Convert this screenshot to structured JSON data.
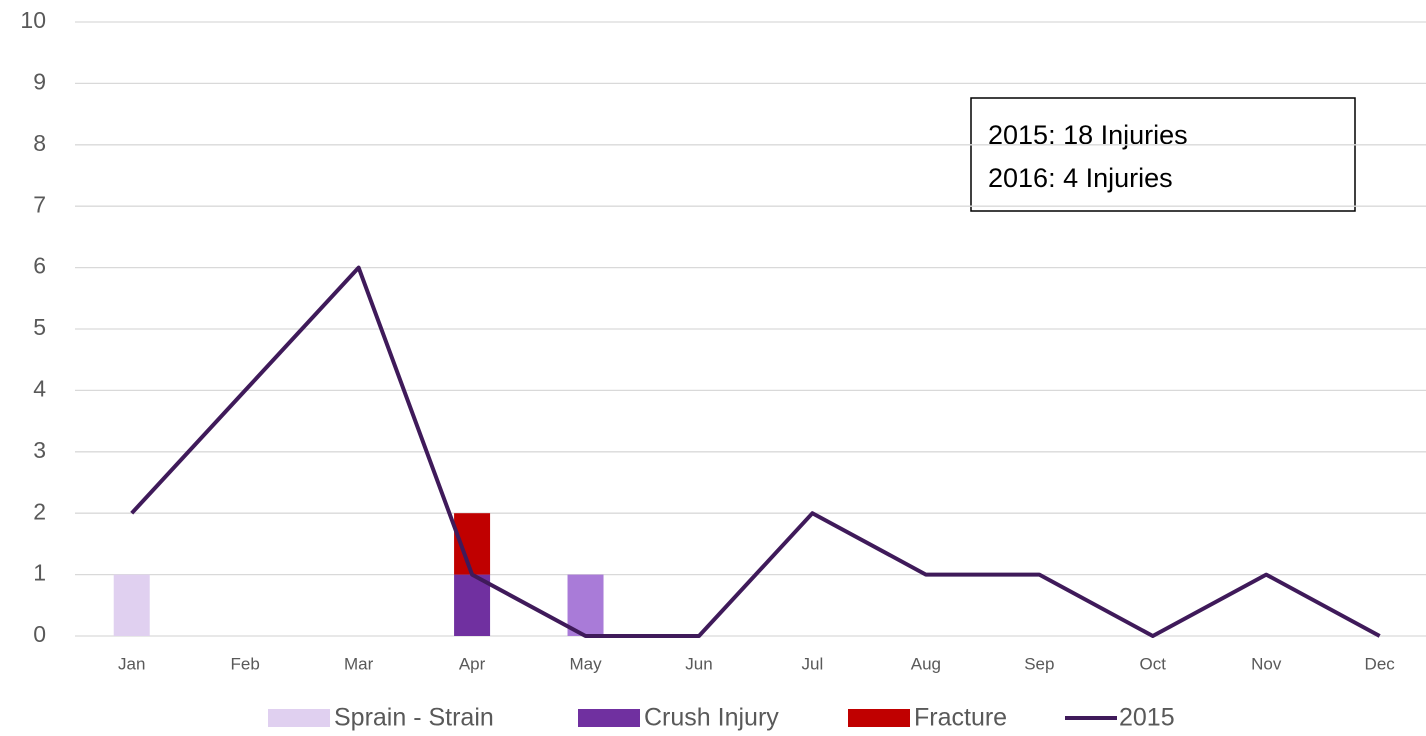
{
  "chart_data": {
    "type": "bar",
    "categories": [
      "Jan",
      "Feb",
      "Mar",
      "Apr",
      "May",
      "Jun",
      "Jul",
      "Aug",
      "Sep",
      "Oct",
      "Nov",
      "Dec"
    ],
    "series": [
      {
        "name": "Sprain - Strain",
        "color": "#e0d0f0",
        "values": [
          1,
          0,
          0,
          0,
          0,
          0,
          0,
          0,
          0,
          0,
          0,
          0
        ]
      },
      {
        "name": "Crush Injury",
        "color": "#7030a0",
        "values": [
          0,
          0,
          0,
          1,
          0,
          0,
          0,
          0,
          0,
          0,
          0,
          0
        ]
      },
      {
        "name": "Fracture",
        "color": "#c00000",
        "values": [
          0,
          0,
          0,
          1,
          0,
          0,
          0,
          0,
          0,
          0,
          0,
          0
        ]
      },
      {
        "color": "#a97bd8",
        "values": [
          0,
          0,
          0,
          0,
          1,
          0,
          0,
          0,
          0,
          0,
          0,
          0
        ]
      },
      {
        "name": "2015",
        "type": "line",
        "color": "#3f1a5a",
        "values": [
          2,
          4,
          6,
          1,
          0,
          0,
          2,
          1,
          1,
          0,
          1,
          0
        ]
      }
    ],
    "annotation": [
      "2015: 18 Injuries",
      "2016: 4 Injuries"
    ],
    "ylim": [
      0,
      10
    ],
    "yticks": [
      0,
      1,
      2,
      3,
      4,
      5,
      6,
      7,
      8,
      9,
      10
    ],
    "grid": true,
    "legend": "bottom"
  }
}
